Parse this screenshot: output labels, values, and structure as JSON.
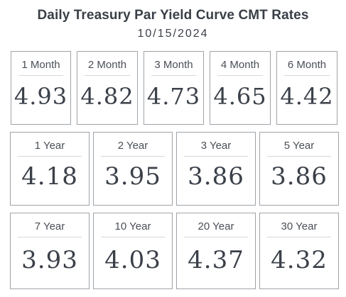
{
  "header": {
    "title": "Daily Treasury Par Yield Curve CMT Rates",
    "date": "10/15/2024"
  },
  "rates": [
    {
      "label": "1 Month",
      "value": "4.93"
    },
    {
      "label": "2 Month",
      "value": "4.82"
    },
    {
      "label": "3 Month",
      "value": "4.73"
    },
    {
      "label": "4 Month",
      "value": "4.65"
    },
    {
      "label": "6 Month",
      "value": "4.42"
    },
    {
      "label": "1 Year",
      "value": "4.18"
    },
    {
      "label": "2 Year",
      "value": "3.95"
    },
    {
      "label": "3 Year",
      "value": "3.86"
    },
    {
      "label": "5 Year",
      "value": "3.86"
    },
    {
      "label": "7 Year",
      "value": "3.93"
    },
    {
      "label": "10 Year",
      "value": "4.03"
    },
    {
      "label": "20 Year",
      "value": "4.37"
    },
    {
      "label": "30 Year",
      "value": "4.32"
    }
  ]
}
